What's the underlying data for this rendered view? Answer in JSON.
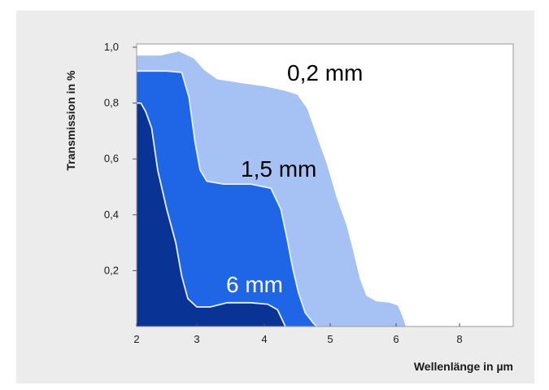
{
  "chart_data": {
    "type": "area",
    "xlabel": "Wellenlänge in µm",
    "ylabel": "Transmission in %",
    "x_tick_labels": [
      "2",
      "3",
      "4",
      "5",
      "6",
      "8"
    ],
    "y_tick_labels": [
      "1,0",
      "0,8",
      "0,6",
      "0,4",
      "0,2"
    ],
    "y_tick_values": [
      1.0,
      0.8,
      0.6,
      0.4,
      0.2
    ],
    "ylim": [
      0,
      1.0
    ],
    "grid": false,
    "colors": {
      "background": "#ececec",
      "plot_area": "#ffffff",
      "series_0_2_mm": "#a6c2f4",
      "series_1_5_mm": "#1f66e6",
      "series_6_mm": "#0a3396",
      "curve_edge": "#e6eeff",
      "label_light": "#ffffff",
      "label_dark": "#000000"
    },
    "series": [
      {
        "name": "0,2 mm",
        "label_color": "label_dark",
        "points": [
          [
            2.0,
            0.97
          ],
          [
            2.4,
            0.97
          ],
          [
            2.7,
            0.985
          ],
          [
            2.95,
            0.96
          ],
          [
            3.1,
            0.92
          ],
          [
            3.3,
            0.885
          ],
          [
            3.7,
            0.87
          ],
          [
            4.0,
            0.86
          ],
          [
            4.3,
            0.845
          ],
          [
            4.5,
            0.83
          ],
          [
            4.65,
            0.78
          ],
          [
            4.8,
            0.68
          ],
          [
            4.95,
            0.58
          ],
          [
            5.1,
            0.46
          ],
          [
            5.25,
            0.36
          ],
          [
            5.35,
            0.27
          ],
          [
            5.45,
            0.17
          ],
          [
            5.55,
            0.11
          ],
          [
            5.7,
            0.09
          ],
          [
            5.9,
            0.085
          ],
          [
            6.05,
            0.075
          ],
          [
            6.15,
            0.05
          ],
          [
            6.25,
            0.02
          ],
          [
            6.3,
            0.0
          ]
        ]
      },
      {
        "name": "1,5 mm",
        "label_color": "label_dark",
        "points": [
          [
            2.0,
            0.915
          ],
          [
            2.5,
            0.915
          ],
          [
            2.75,
            0.91
          ],
          [
            2.87,
            0.82
          ],
          [
            2.97,
            0.66
          ],
          [
            3.05,
            0.56
          ],
          [
            3.15,
            0.52
          ],
          [
            3.4,
            0.51
          ],
          [
            3.8,
            0.51
          ],
          [
            4.1,
            0.495
          ],
          [
            4.25,
            0.42
          ],
          [
            4.35,
            0.31
          ],
          [
            4.43,
            0.21
          ],
          [
            4.52,
            0.12
          ],
          [
            4.62,
            0.05
          ],
          [
            4.75,
            0.01
          ],
          [
            4.8,
            0.0
          ]
        ]
      },
      {
        "name": "6 mm",
        "label_color": "label_light",
        "points": [
          [
            2.0,
            0.8
          ],
          [
            2.07,
            0.8
          ],
          [
            2.15,
            0.77
          ],
          [
            2.25,
            0.71
          ],
          [
            2.35,
            0.56
          ],
          [
            2.5,
            0.42
          ],
          [
            2.65,
            0.3
          ],
          [
            2.75,
            0.18
          ],
          [
            2.85,
            0.1
          ],
          [
            3.0,
            0.07
          ],
          [
            3.2,
            0.07
          ],
          [
            3.45,
            0.085
          ],
          [
            3.8,
            0.085
          ],
          [
            4.05,
            0.08
          ],
          [
            4.2,
            0.06
          ],
          [
            4.3,
            0.01
          ],
          [
            4.32,
            0.0
          ]
        ]
      }
    ]
  }
}
